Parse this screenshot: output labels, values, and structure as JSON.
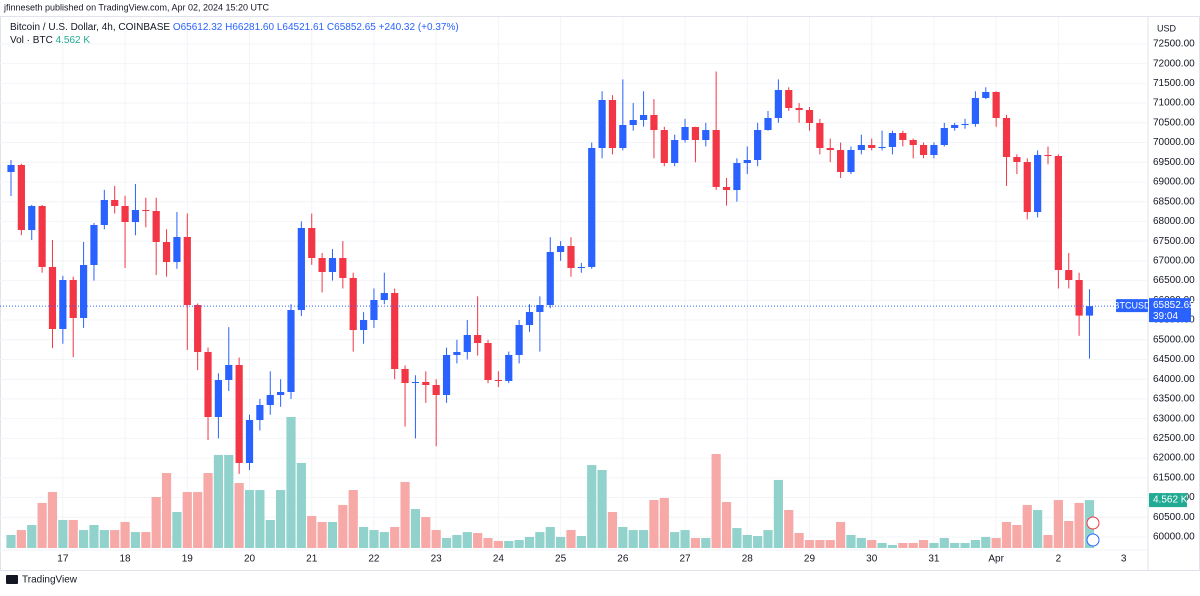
{
  "page": {
    "publisher": "jfinneseth published on TradingView.com, Apr 02, 2024 15:20 UTC",
    "logo": "TradingView"
  },
  "chart_data": {
    "type": "candlestick",
    "header": {
      "symbol": "Bitcoin / U.S. Dollar, 4h, COINBASE",
      "ohlc": [
        "O65612.32",
        "H66281.60",
        "L64521.61",
        "C65852.65"
      ],
      "change": "+240.32 (+0.37%)",
      "vol_label": "Vol · BTC",
      "vol_value": "4.562 K"
    },
    "currency": "USD",
    "ticker": "BTCUSD",
    "countdown": "39:04",
    "volume_axis_label": "4.562 K",
    "up_color": "#2962ff",
    "down_color": "#f23645",
    "volume_up_color": "#92d2cc",
    "volume_down_color": "#f7a9a7",
    "grid": true,
    "categories": [
      null,
      null,
      null,
      null,
      null,
      "17",
      null,
      null,
      null,
      null,
      null,
      "18",
      null,
      null,
      null,
      null,
      null,
      "19",
      null,
      null,
      null,
      null,
      null,
      "20",
      null,
      null,
      null,
      null,
      null,
      "21",
      null,
      null,
      null,
      null,
      null,
      "22",
      null,
      null,
      null,
      null,
      null,
      "23",
      null,
      null,
      null,
      null,
      null,
      "24",
      null,
      null,
      null,
      null,
      null,
      "25",
      null,
      null,
      null,
      null,
      null,
      "26",
      null,
      null,
      null,
      null,
      null,
      "27",
      null,
      null,
      null,
      null,
      null,
      "28",
      null,
      null,
      null,
      null,
      null,
      "29",
      null,
      null,
      null,
      null,
      null,
      "30",
      null,
      null,
      null,
      null,
      null,
      "31",
      null,
      null,
      null,
      null,
      null,
      "Apr",
      null,
      null,
      null,
      null,
      null,
      "2",
      null,
      null,
      null
    ],
    "next_label": "3",
    "open": [
      69253,
      69430,
      67782,
      68391,
      66845,
      65273,
      66515,
      65552,
      66895,
      67909,
      68543,
      68391,
      67985,
      68289,
      68264,
      67478,
      66971,
      67605,
      65881,
      64690,
      63042,
      63980,
      64360,
      61876,
      62966,
      63346,
      63600,
      63676,
      65754,
      67833,
      67073,
      66718,
      67073,
      66566,
      65247,
      65501,
      66008,
      66185,
      64259,
      63904,
      63929,
      63853,
      63600,
      64614,
      64690,
      65121,
      64918,
      63980,
      63955,
      64614,
      65374,
      65704,
      65881,
      67225,
      67377,
      66819,
      66845,
      69861,
      71078,
      69861,
      70444,
      70571,
      70698,
      70317,
      69481,
      70064,
      70394,
      70064,
      70317,
      68873,
      68796,
      69481,
      69557,
      70317,
      70622,
      71331,
      70875,
      70824,
      70495,
      69861,
      69810,
      69253,
      69810,
      69937,
      69861,
      69887,
      70241,
      70064,
      69937,
      69684,
      69937,
      70368,
      70444,
      70470,
      71129,
      71281,
      70622,
      69633,
      69506,
      68239,
      69684,
      69658,
      66768,
      66515,
      65612.32
    ],
    "high": [
      69557,
      69460,
      68420,
      68420,
      67530,
      66620,
      66600,
      67480,
      67960,
      68800,
      68900,
      68650,
      68950,
      68600,
      68600,
      67800,
      68240,
      68200,
      65920,
      64800,
      64150,
      65320,
      64550,
      63100,
      63500,
      64200,
      64000,
      65900,
      68000,
      68200,
      67200,
      67300,
      67500,
      66700,
      65700,
      66300,
      66700,
      66300,
      64350,
      64100,
      64200,
      64000,
      64800,
      65000,
      65500,
      66100,
      65000,
      64200,
      64700,
      65500,
      65900,
      66100,
      67600,
      67500,
      67600,
      66950,
      70000,
      71300,
      71200,
      71600,
      71000,
      71300,
      71100,
      70400,
      70200,
      70600,
      70400,
      70500,
      71800,
      69100,
      69600,
      69900,
      70500,
      70800,
      71600,
      71400,
      71000,
      70900,
      70600,
      70100,
      70000,
      69900,
      70200,
      70100,
      70300,
      70300,
      70300,
      70100,
      70000,
      70000,
      70500,
      70500,
      70600,
      71300,
      71400,
      71300,
      70700,
      69700,
      69600,
      69800,
      69900,
      69700,
      67200,
      66700,
      66281.6
    ],
    "low": [
      68644,
      67650,
      67530,
      66700,
      64790,
      64900,
      64560,
      65300,
      66500,
      67800,
      68200,
      66820,
      67650,
      67850,
      66640,
      66600,
      66800,
      64740,
      64230,
      62460,
      62500,
      63700,
      61600,
      61700,
      62700,
      63100,
      63300,
      63500,
      65600,
      66900,
      66200,
      66500,
      66300,
      64700,
      64900,
      65300,
      65900,
      64000,
      62800,
      62500,
      63400,
      62300,
      63400,
      64400,
      64500,
      64600,
      63900,
      63800,
      63900,
      64400,
      65200,
      64700,
      65800,
      67000,
      66600,
      66700,
      66800,
      69600,
      69700,
      69800,
      70300,
      70400,
      69600,
      69400,
      69400,
      70000,
      69500,
      69900,
      68800,
      68400,
      68500,
      69200,
      69400,
      70300,
      70500,
      70800,
      70500,
      70300,
      69700,
      69500,
      69100,
      69200,
      69700,
      69800,
      69800,
      69700,
      69900,
      69600,
      69600,
      69600,
      69900,
      70300,
      70350,
      70400,
      71100,
      70400,
      68900,
      69200,
      68050,
      68100,
      69450,
      66300,
      66300,
      65100,
      64521.61
    ],
    "close": [
      69430,
      67782,
      68391,
      66845,
      65273,
      66515,
      65552,
      66895,
      67909,
      68543,
      68391,
      67985,
      68289,
      68264,
      67478,
      66971,
      67605,
      65881,
      64690,
      63042,
      63980,
      64360,
      61876,
      62966,
      63346,
      63600,
      63676,
      65754,
      67833,
      67073,
      66718,
      67073,
      66566,
      65247,
      65501,
      66008,
      66185,
      64259,
      63904,
      63929,
      63853,
      63600,
      64614,
      64690,
      65121,
      64918,
      63980,
      63955,
      64614,
      65374,
      65704,
      65881,
      67225,
      67377,
      66819,
      66845,
      69861,
      71078,
      69861,
      70444,
      70571,
      70698,
      70317,
      69481,
      70064,
      70394,
      70064,
      70317,
      68873,
      68796,
      69481,
      69557,
      70317,
      70622,
      71331,
      70875,
      70824,
      70495,
      69861,
      69810,
      69253,
      69810,
      69937,
      69861,
      69887,
      70241,
      70064,
      69937,
      69684,
      69937,
      70368,
      70444,
      70470,
      71129,
      71281,
      70622,
      69633,
      69506,
      68239,
      69684,
      69658,
      66768,
      66515,
      65612.32,
      65852.65
    ],
    "volume": [
      1.24,
      1.71,
      2.19,
      4.29,
      5.33,
      2.67,
      2.67,
      1.71,
      2.19,
      1.71,
      1.71,
      2.48,
      1.52,
      1.52,
      4.86,
      7.14,
      3.43,
      5.33,
      5.33,
      7.14,
      8.86,
      8.86,
      6.19,
      5.52,
      5.52,
      2.67,
      5.52,
      12.48,
      8.1,
      3.05,
      2.48,
      2.48,
      4.1,
      5.52,
      2.0,
      1.71,
      1.52,
      2.0,
      6.29,
      3.71,
      2.95,
      1.71,
      0.95,
      1.24,
      1.52,
      1.43,
      0.95,
      0.67,
      0.67,
      0.76,
      1.05,
      1.52,
      2.0,
      1.05,
      1.71,
      1.14,
      7.9,
      7.43,
      3.43,
      2.0,
      1.71,
      1.71,
      4.57,
      4.76,
      1.52,
      1.71,
      0.95,
      0.95,
      8.95,
      4.38,
      1.9,
      1.24,
      1.14,
      1.71,
      6.48,
      3.62,
      1.43,
      0.76,
      0.76,
      0.76,
      2.48,
      1.24,
      0.95,
      0.76,
      0.48,
      0.29,
      0.48,
      0.48,
      0.76,
      0.48,
      0.95,
      0.48,
      0.48,
      0.76,
      1.05,
      0.95,
      2.48,
      2.19,
      4.1,
      3.62,
      1.24,
      4.57,
      2.57,
      4.29,
      4.562
    ],
    "ylim": [
      59214,
      73106
    ],
    "yticks": [
      {
        "value": 60000,
        "label": "60000.00"
      },
      {
        "value": 60500,
        "label": "60500.00"
      },
      {
        "value": 61000,
        "label": "61000.00"
      },
      {
        "value": 61500,
        "label": "61500.00"
      },
      {
        "value": 62000,
        "label": "62000.00"
      },
      {
        "value": 62500,
        "label": "62500.00"
      },
      {
        "value": 63000,
        "label": "63000.00"
      },
      {
        "value": 63500,
        "label": "63500.00"
      },
      {
        "value": 64000,
        "label": "64000.00"
      },
      {
        "value": 64500,
        "label": "64500.00"
      },
      {
        "value": 65000,
        "label": "65000.00"
      },
      {
        "value": 65500,
        "label": "65500.00"
      },
      {
        "value": 66000,
        "label": "66000.00"
      },
      {
        "value": 66500,
        "label": "66500.00"
      },
      {
        "value": 67000,
        "label": "67000.00"
      },
      {
        "value": 67500,
        "label": "67500.00"
      },
      {
        "value": 68000,
        "label": "68000.00"
      },
      {
        "value": 68500,
        "label": "68500.00"
      },
      {
        "value": 69000,
        "label": "69000.00"
      },
      {
        "value": 69500,
        "label": "69500.00"
      },
      {
        "value": 70000,
        "label": "70000.00"
      },
      {
        "value": 70500,
        "label": "70500.00"
      },
      {
        "value": 71000,
        "label": "71000.00"
      },
      {
        "value": 71500,
        "label": "71500.00"
      },
      {
        "value": 72000,
        "label": "72000.00"
      },
      {
        "value": 72500,
        "label": "72500.00"
      }
    ]
  }
}
